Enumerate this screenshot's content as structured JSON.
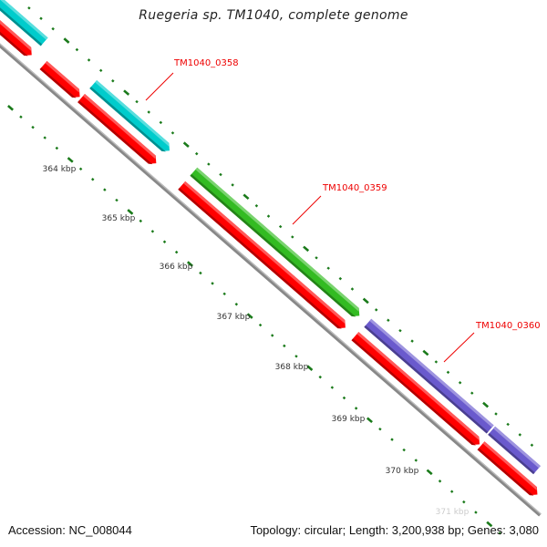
{
  "title": "Ruegeria sp. TM1040, complete genome",
  "footer": {
    "accession": "Accession: NC_008044",
    "summary": "Topology: circular; Length: 3,200,938 bp; Genes: 3,080"
  },
  "scale_labels": [
    "364 kbp",
    "365 kbp",
    "366 kbp",
    "367 kbp",
    "368 kbp",
    "369 kbp",
    "370 kbp",
    "371 kbp"
  ],
  "gene_labels": [
    "TM1040_0358",
    "TM1040_0359",
    "TM1040_0360"
  ],
  "colors": {
    "cds": "#ff0000",
    "gene_0358": "#00cccc",
    "gene_0359": "#33bb22",
    "gene_0360": "#6a5acd",
    "backbone": "#888888",
    "ticks": "#1a7a1a",
    "label": "#ee0000"
  }
}
